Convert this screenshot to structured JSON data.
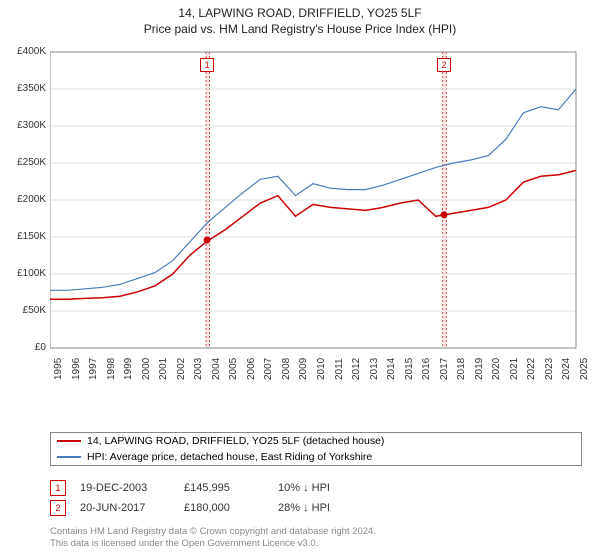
{
  "title": "14, LAPWING ROAD, DRIFFIELD, YO25 5LF",
  "subtitle": "Price paid vs. HM Land Registry's House Price Index (HPI)",
  "chart": {
    "type": "line",
    "background_color": "#ffffff",
    "grid_color": "#e0e0e0",
    "axis_color": "#444444",
    "tick_fontsize": 10,
    "x_years": [
      1995,
      1996,
      1997,
      1998,
      1999,
      2000,
      2001,
      2002,
      2003,
      2004,
      2005,
      2006,
      2007,
      2008,
      2009,
      2010,
      2011,
      2012,
      2013,
      2014,
      2015,
      2016,
      2017,
      2018,
      2019,
      2020,
      2021,
      2022,
      2023,
      2024,
      2025
    ],
    "ylim": [
      0,
      400000
    ],
    "ytick_step": 50000,
    "ytick_labels": [
      "£0",
      "£50K",
      "£100K",
      "£150K",
      "£200K",
      "£250K",
      "£300K",
      "£350K",
      "£400K"
    ],
    "series": [
      {
        "name": "property",
        "label": "14, LAPWING ROAD, DRIFFIELD, YO25 5LF (detached house)",
        "color": "#cc0000",
        "line_width": 1.5,
        "y": [
          66000,
          66000,
          67000,
          68000,
          70000,
          76000,
          84000,
          100000,
          126000,
          145000,
          160000,
          178000,
          196000,
          206000,
          178000,
          194000,
          190000,
          188000,
          186000,
          190000,
          196000,
          200000,
          178000,
          182000,
          186000,
          190000,
          200000,
          224000,
          232000,
          234000,
          240000
        ]
      },
      {
        "name": "hpi",
        "label": "HPI: Average price, detached house, East Riding of Yorkshire",
        "color": "#4a7db8",
        "line_width": 1.2,
        "y": [
          78000,
          78000,
          80000,
          82000,
          86000,
          94000,
          102000,
          118000,
          144000,
          170000,
          190000,
          210000,
          228000,
          232000,
          206000,
          222000,
          216000,
          214000,
          214000,
          220000,
          228000,
          236000,
          244000,
          250000,
          254000,
          260000,
          282000,
          318000,
          326000,
          322000,
          350000
        ]
      }
    ],
    "shaded_regions": [
      {
        "x_start": 2003.9,
        "x_end": 2004.1,
        "color": "#f0d6d6"
      },
      {
        "x_start": 2017.4,
        "x_end": 2017.6,
        "color": "#f0d6d6"
      }
    ],
    "sale_markers": [
      {
        "label": "1",
        "year": 2003.96,
        "price": 145995,
        "marker_color": "#cc0000"
      },
      {
        "label": "2",
        "year": 2017.47,
        "price": 180000,
        "marker_color": "#cc0000"
      }
    ]
  },
  "legend": {
    "items": [
      {
        "color": "#cc0000",
        "text": "14, LAPWING ROAD, DRIFFIELD, YO25 5LF (detached house)"
      },
      {
        "color": "#4a7db8",
        "text": "HPI: Average price, detached house, East Riding of Yorkshire"
      }
    ]
  },
  "footnotes": [
    {
      "badge": "1",
      "date": "19-DEC-2003",
      "price": "£145,995",
      "delta": "10% ↓ HPI"
    },
    {
      "badge": "2",
      "date": "20-JUN-2017",
      "price": "£180,000",
      "delta": "28% ↓ HPI"
    }
  ],
  "source": {
    "line1": "Contains HM Land Registry data © Crown copyright and database right 2024.",
    "line2": "This data is licensed under the Open Government Licence v3.0."
  }
}
